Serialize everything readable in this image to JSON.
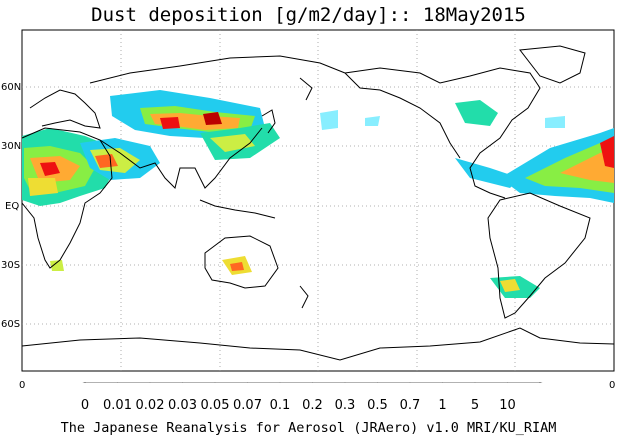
{
  "title": "Dust deposition [g/m2/day]:: 18May2015",
  "credit": "The Japanese Reanalysis for Aerosol (JRAero) v1.0 MRI/KU_RIAM",
  "map": {
    "projection": "equirectangular",
    "center_longitude": 180,
    "grid": "dotted",
    "lat_labels": [
      "60N",
      "30N",
      "EQ",
      "30S",
      "60S"
    ],
    "x_axis_labels": [
      "0",
      "0"
    ],
    "colorbar": {
      "labels": [
        "0",
        "0.01",
        "0.02",
        "0.03",
        "0.05",
        "0.07",
        "0.1",
        "0.2",
        "0.3",
        "0.5",
        "0.7",
        "1",
        "5",
        "10"
      ],
      "colors": [
        "#ffffff",
        "#88eeff",
        "#22ccee",
        "#11bbcc",
        "#22ddaa",
        "#33dd77",
        "#88ee44",
        "#ccee44",
        "#eedd33",
        "#ffaa33",
        "#ff6622",
        "#ee1111",
        "#bb0000",
        "#880000"
      ],
      "extend": "both"
    }
  }
}
